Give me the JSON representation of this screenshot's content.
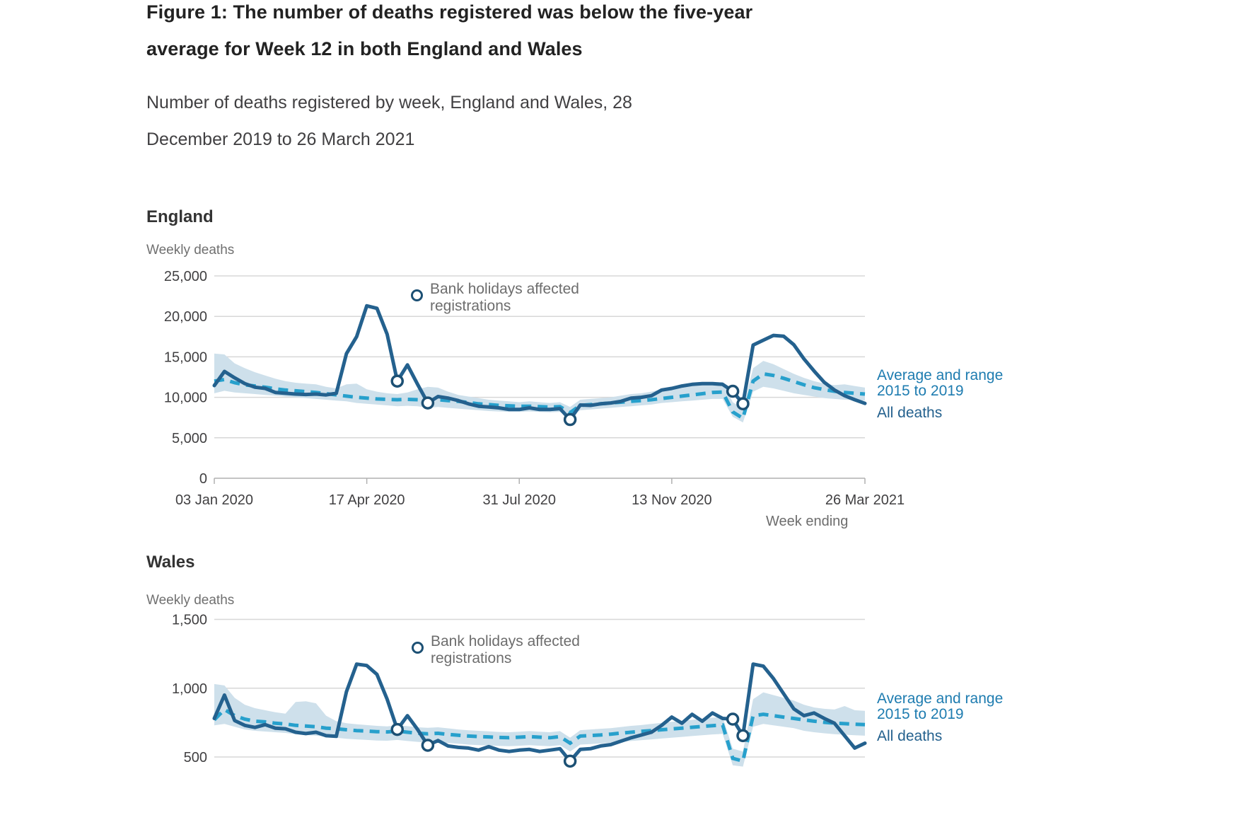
{
  "title": {
    "line1": "Figure 1: The number of deaths registered was below the five-year",
    "line2": "average for Week 12 in both England and Wales"
  },
  "subtitle": {
    "line1": "Number of deaths registered by week, England and Wales, 28",
    "line2": "December 2019 to 26 March 2021"
  },
  "annotation": {
    "line1": "Bank holidays affected",
    "line2": "registrations"
  },
  "legend": {
    "range_line1": "Average and range",
    "range_line2": "2015 to 2019",
    "all_deaths": "All deaths"
  },
  "axis": {
    "x_title": "Week ending",
    "x_tick_labels": [
      "03 Jan 2020",
      "17 Apr 2020",
      "31 Jul 2020",
      "13 Nov 2020",
      "26 Mar 2021"
    ],
    "x_tick_weeks": [
      0,
      15,
      30,
      45,
      64
    ],
    "weeks_total": 65
  },
  "colors": {
    "all_deaths_line": "#24618e",
    "average_line": "#27a0cc",
    "range_band": "#cee0eb",
    "bank_holiday_marker": "#1c5074",
    "gridline": "#d7d7d7",
    "axis_line": "#b1b1b1",
    "axis_label_text": "#414042",
    "annotation_text": "#6d6d6d",
    "legend_range_text": "#1e7cb0",
    "legend_all_text": "#24618e"
  },
  "chart_data": [
    {
      "type": "line",
      "region": "England",
      "y_axis_label": "Weekly deaths",
      "ylim": [
        0,
        25000
      ],
      "y_ticks": {
        "values": [
          0,
          5000,
          10000,
          15000,
          20000,
          25000
        ],
        "labels": [
          "0",
          "5,000",
          "10,000",
          "15,000",
          "20,000",
          "25,000"
        ]
      },
      "bank_holiday_weeks": [
        18,
        21,
        35,
        51,
        52
      ],
      "series": [
        {
          "name": "All deaths",
          "values": [
            11450,
            13200,
            12400,
            11700,
            11250,
            11100,
            10600,
            10500,
            10400,
            10350,
            10400,
            10300,
            10500,
            15400,
            17500,
            21300,
            21000,
            17800,
            12000,
            14000,
            11600,
            9300,
            10100,
            9900,
            9600,
            9200,
            8900,
            8800,
            8700,
            8500,
            8500,
            8700,
            8500,
            8500,
            8600,
            7250,
            9050,
            9000,
            9200,
            9300,
            9500,
            9900,
            10000,
            10200,
            10900,
            11100,
            11400,
            11600,
            11700,
            11700,
            11600,
            10750,
            9200,
            16450,
            17050,
            17650,
            17550,
            16500,
            14750,
            13250,
            11850,
            10900,
            10200,
            9700,
            9250
          ]
        },
        {
          "name": "Average 2015 to 2019",
          "values": [
            12000,
            12200,
            11800,
            11550,
            11400,
            11250,
            11050,
            10900,
            10800,
            10700,
            10600,
            10450,
            10300,
            10150,
            10000,
            9900,
            9800,
            9750,
            9700,
            9750,
            9700,
            9650,
            9700,
            9600,
            9500,
            9350,
            9200,
            9100,
            9000,
            8950,
            8900,
            8900,
            8850,
            8800,
            8850,
            8100,
            9000,
            9100,
            9200,
            9300,
            9400,
            9500,
            9600,
            9700,
            9850,
            10000,
            10150,
            10300,
            10450,
            10600,
            10650,
            8200,
            7400,
            12000,
            12900,
            12700,
            12350,
            11950,
            11550,
            11200,
            10950,
            10750,
            10600,
            10500,
            10400
          ]
        },
        {
          "name": "Range maximum 2015 to 2019",
          "values": [
            15400,
            15300,
            14200,
            13600,
            13100,
            12700,
            12300,
            12000,
            11800,
            11700,
            11600,
            11300,
            11100,
            11600,
            11700,
            11000,
            10700,
            10500,
            10400,
            10600,
            11000,
            11300,
            11200,
            10700,
            10300,
            10100,
            9900,
            9700,
            9600,
            9500,
            9400,
            9500,
            9400,
            9300,
            9400,
            8800,
            9700,
            9800,
            9900,
            10000,
            10200,
            10400,
            10500,
            10700,
            11000,
            11200,
            11400,
            11600,
            11700,
            11800,
            11900,
            9400,
            8600,
            13600,
            14500,
            14100,
            13500,
            12900,
            12400,
            12000,
            11700,
            11500,
            11600,
            11400,
            11200
          ]
        },
        {
          "name": "Range minimum 2015 to 2019",
          "values": [
            10500,
            10800,
            10600,
            10500,
            10400,
            10300,
            10200,
            10100,
            10000,
            9900,
            9800,
            9700,
            9600,
            9500,
            9300,
            9200,
            9100,
            9000,
            8900,
            8950,
            8900,
            8700,
            8800,
            8700,
            8600,
            8500,
            8400,
            8300,
            8250,
            8200,
            8200,
            8250,
            8200,
            8150,
            8200,
            7600,
            8400,
            8500,
            8600,
            8700,
            8800,
            8900,
            9000,
            9100,
            9300,
            9400,
            9500,
            9600,
            9700,
            9800,
            9800,
            7600,
            6900,
            10700,
            11300,
            11100,
            10800,
            10500,
            10300,
            10100,
            9900,
            9800,
            9700,
            9650,
            9600
          ]
        }
      ]
    },
    {
      "type": "line",
      "region": "Wales",
      "y_axis_label": "Weekly deaths",
      "ylim": [
        0,
        1500
      ],
      "y_ticks": {
        "values": [
          500,
          1000,
          1500
        ],
        "labels": [
          "500",
          "1,000",
          "1,500"
        ]
      },
      "bank_holiday_weeks": [
        18,
        21,
        35,
        51,
        52
      ],
      "series": [
        {
          "name": "All deaths",
          "values": [
            780,
            950,
            765,
            730,
            715,
            735,
            710,
            705,
            680,
            670,
            680,
            655,
            650,
            975,
            1175,
            1165,
            1100,
            920,
            700,
            800,
            700,
            585,
            620,
            580,
            570,
            565,
            550,
            575,
            550,
            540,
            550,
            555,
            540,
            550,
            560,
            470,
            555,
            560,
            580,
            590,
            615,
            640,
            660,
            680,
            730,
            790,
            745,
            810,
            760,
            820,
            780,
            775,
            655,
            1175,
            1160,
            1070,
            960,
            850,
            800,
            820,
            780,
            745,
            655,
            565,
            600
          ]
        },
        {
          "name": "Average 2015 to 2019",
          "values": [
            770,
            845,
            800,
            775,
            760,
            755,
            745,
            740,
            730,
            725,
            720,
            710,
            705,
            698,
            692,
            688,
            684,
            682,
            688,
            680,
            672,
            668,
            672,
            664,
            658,
            652,
            648,
            646,
            642,
            640,
            644,
            648,
            644,
            640,
            648,
            600,
            652,
            656,
            660,
            666,
            674,
            680,
            686,
            692,
            698,
            704,
            710,
            716,
            722,
            728,
            732,
            490,
            470,
            800,
            810,
            800,
            790,
            780,
            770,
            760,
            752,
            746,
            742,
            738,
            735
          ]
        },
        {
          "name": "Range maximum 2015 to 2019",
          "values": [
            1030,
            1020,
            930,
            880,
            855,
            840,
            825,
            815,
            900,
            905,
            890,
            800,
            760,
            745,
            738,
            732,
            726,
            722,
            730,
            724,
            716,
            712,
            716,
            708,
            700,
            694,
            690,
            686,
            682,
            680,
            684,
            688,
            684,
            680,
            688,
            640,
            695,
            700,
            705,
            710,
            718,
            726,
            732,
            740,
            748,
            756,
            762,
            770,
            778,
            786,
            790,
            560,
            540,
            920,
            970,
            950,
            930,
            910,
            880,
            860,
            850,
            845,
            870,
            840,
            835
          ]
        },
        {
          "name": "Range minimum 2015 to 2019",
          "values": [
            730,
            740,
            720,
            700,
            690,
            685,
            680,
            675,
            665,
            660,
            655,
            648,
            640,
            632,
            628,
            624,
            620,
            618,
            624,
            616,
            610,
            606,
            610,
            602,
            596,
            590,
            586,
            584,
            580,
            578,
            582,
            586,
            582,
            578,
            586,
            540,
            590,
            594,
            598,
            604,
            610,
            616,
            622,
            628,
            634,
            640,
            646,
            652,
            658,
            664,
            668,
            440,
            430,
            720,
            740,
            730,
            720,
            710,
            690,
            680,
            672,
            666,
            662,
            658,
            655
          ]
        }
      ]
    }
  ]
}
